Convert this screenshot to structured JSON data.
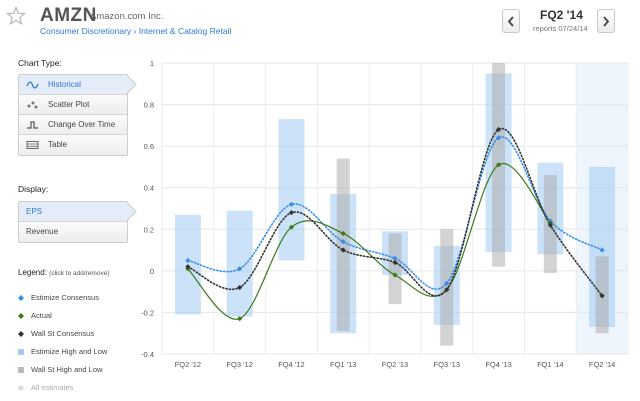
{
  "header": {
    "ticker": "AMZN",
    "company": "Amazon.com Inc.",
    "breadcrumb": "Consumer Discretionary › Internet & Catalog Retail",
    "quarter": "FQ2 '14",
    "reports": "reports 07/24/14"
  },
  "sidebar": {
    "chart_type_title": "Chart Type:",
    "chart_types": [
      {
        "label": "Historical",
        "icon": "wave-icon",
        "active": true
      },
      {
        "label": "Scatter Plot",
        "icon": "scatter-icon",
        "active": false
      },
      {
        "label": "Change Over Time",
        "icon": "step-icon",
        "active": false
      },
      {
        "label": "Table",
        "icon": "table-icon",
        "active": false
      }
    ],
    "display_title": "Display:",
    "display_options": [
      {
        "label": "EPS",
        "active": true
      },
      {
        "label": "Revenue",
        "active": false
      }
    ],
    "legend_title": "Legend:",
    "legend_hint": "(click to add/remove)",
    "legend": [
      {
        "label": "Estimize Consensus",
        "color": "#3a8ee6",
        "shape": "diamond"
      },
      {
        "label": "Actual",
        "color": "#3d7a1a",
        "shape": "diamond"
      },
      {
        "label": "Wall St Consensus",
        "color": "#333333",
        "shape": "diamond"
      },
      {
        "label": "Estimize High and Low",
        "color": "#a9cdf2",
        "shape": "square"
      },
      {
        "label": "Wall St High and Low",
        "color": "#b9b9b9",
        "shape": "square"
      },
      {
        "label": "All estimates",
        "color": "#dddddd",
        "shape": "circle",
        "disabled": true
      }
    ]
  },
  "chart_data": {
    "type": "line",
    "categories": [
      "FQ2 '12",
      "FQ3 '12",
      "FQ4 '12",
      "FQ1 '13",
      "FQ2 '13",
      "FQ3 '13",
      "FQ4 '13",
      "FQ1 '14",
      "FQ2 '14"
    ],
    "ylim": [
      -0.4,
      1
    ],
    "yticks": [
      -0.4,
      -0.2,
      0,
      0.2,
      0.4,
      0.6,
      0.8,
      1
    ],
    "ytick_labels": [
      "-0.4",
      "-0.2",
      "0",
      "0.2",
      "0.4",
      "0.6",
      "0.8",
      "1"
    ],
    "grid": true,
    "highlight_category": "FQ2 '14",
    "series": [
      {
        "name": "Estimize Consensus",
        "values": [
          0.05,
          0.01,
          0.32,
          0.14,
          0.06,
          -0.06,
          0.64,
          0.24,
          0.1
        ],
        "color": "#3a8ee6",
        "style": "dotted"
      },
      {
        "name": "Actual",
        "values": [
          0.01,
          -0.23,
          0.21,
          0.18,
          -0.02,
          -0.09,
          0.51,
          0.23,
          null
        ],
        "color": "#3d7a1a",
        "style": "solid"
      },
      {
        "name": "Wall St Consensus",
        "values": [
          0.02,
          -0.08,
          0.28,
          0.1,
          0.04,
          -0.09,
          0.68,
          0.22,
          -0.12
        ],
        "color": "#333333",
        "style": "dotted"
      }
    ],
    "estimize_ranges": [
      [
        -0.21,
        0.27
      ],
      [
        -0.22,
        0.29
      ],
      [
        0.05,
        0.73
      ],
      [
        -0.3,
        0.37
      ],
      [
        -0.02,
        0.19
      ],
      [
        -0.26,
        0.12
      ],
      [
        0.09,
        0.95
      ],
      [
        0.08,
        0.52
      ],
      [
        -0.27,
        0.5
      ]
    ],
    "wallst_ranges": [
      null,
      null,
      null,
      [
        -0.29,
        0.54
      ],
      [
        -0.16,
        0.18
      ],
      [
        -0.36,
        0.2
      ],
      [
        0.02,
        1.0
      ],
      [
        -0.01,
        0.46
      ],
      [
        -0.3,
        0.07
      ]
    ]
  }
}
